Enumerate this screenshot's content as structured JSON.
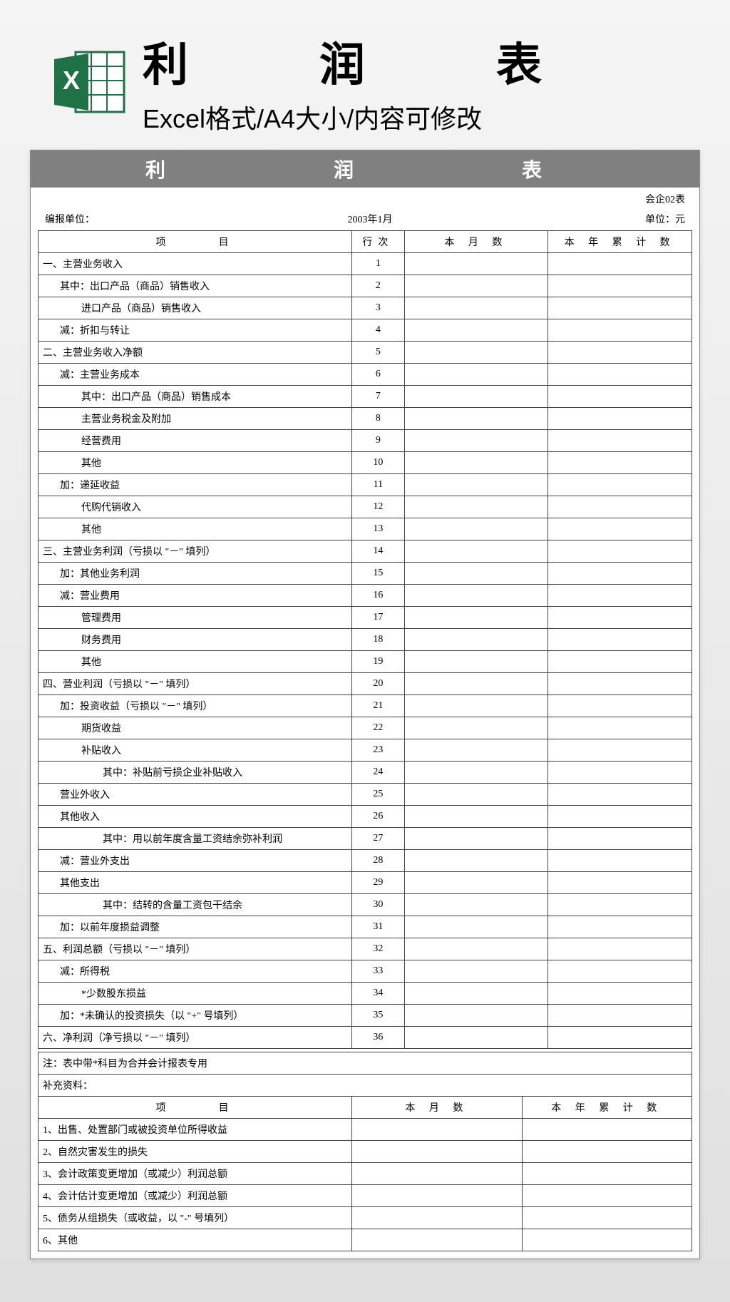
{
  "header": {
    "title": "利　润　表",
    "subtitle": "Excel格式/A4大小/内容可修改"
  },
  "doc": {
    "bar_title": "利　　润　　表",
    "form_code": "会企02表",
    "unit_label": "编报单位：",
    "period": "2003年1月",
    "currency_label": "单位：元",
    "columns": {
      "item": "项　　　目",
      "line": "行次",
      "month": "本 月 数",
      "year": "本 年 累 计 数"
    },
    "rows": [
      {
        "no": "1",
        "label": "一、主营业务收入",
        "indent": 0,
        "shaded": true
      },
      {
        "no": "2",
        "label": "其中：出口产品（商品）销售收入",
        "indent": 1
      },
      {
        "no": "3",
        "label": "进口产品（商品）销售收入",
        "indent": 2
      },
      {
        "no": "4",
        "label": "减：折扣与转让",
        "indent": 1
      },
      {
        "no": "5",
        "label": "二、主营业务收入净额",
        "indent": 0,
        "shaded": true
      },
      {
        "no": "6",
        "label": "减：主营业务成本",
        "indent": 1
      },
      {
        "no": "7",
        "label": "其中：出口产品（商品）销售成本",
        "indent": 2
      },
      {
        "no": "8",
        "label": "主营业务税金及附加",
        "indent": 2
      },
      {
        "no": "9",
        "label": "经营费用",
        "indent": 2
      },
      {
        "no": "10",
        "label": "其他",
        "indent": 2
      },
      {
        "no": "11",
        "label": "加：递延收益",
        "indent": 1
      },
      {
        "no": "12",
        "label": "代购代销收入",
        "indent": 2
      },
      {
        "no": "13",
        "label": "其他",
        "indent": 2
      },
      {
        "no": "14",
        "label": "三、主营业务利润（亏损以 \"－\" 填列）",
        "indent": 0,
        "shaded": true
      },
      {
        "no": "15",
        "label": "加：其他业务利润",
        "indent": 1
      },
      {
        "no": "16",
        "label": "减：营业费用",
        "indent": 1
      },
      {
        "no": "17",
        "label": "管理费用",
        "indent": 2
      },
      {
        "no": "18",
        "label": "财务费用",
        "indent": 2
      },
      {
        "no": "19",
        "label": "其他",
        "indent": 2
      },
      {
        "no": "20",
        "label": "四、营业利润（亏损以 \"－\" 填列）",
        "indent": 0,
        "shaded": true
      },
      {
        "no": "21",
        "label": "加：投资收益（亏损以 \"－\" 填列）",
        "indent": 1
      },
      {
        "no": "22",
        "label": "期货收益",
        "indent": 2
      },
      {
        "no": "23",
        "label": "补贴收入",
        "indent": 2
      },
      {
        "no": "24",
        "label": "其中：补贴前亏损企业补贴收入",
        "indent": 3
      },
      {
        "no": "25",
        "label": "营业外收入",
        "indent": 1
      },
      {
        "no": "26",
        "label": "其他收入",
        "indent": 1
      },
      {
        "no": "27",
        "label": "其中：用以前年度含量工资结余弥补利润",
        "indent": 3
      },
      {
        "no": "28",
        "label": "减：营业外支出",
        "indent": 1
      },
      {
        "no": "29",
        "label": "其他支出",
        "indent": 1
      },
      {
        "no": "30",
        "label": "其中：结转的含量工资包干结余",
        "indent": 3
      },
      {
        "no": "31",
        "label": "加：以前年度损益调整",
        "indent": 1
      },
      {
        "no": "32",
        "label": "五、利润总额（亏损以 \"－\" 填列）",
        "indent": 0,
        "shaded": true
      },
      {
        "no": "33",
        "label": "减：所得税",
        "indent": 1
      },
      {
        "no": "34",
        "label": "*少数股东损益",
        "indent": 2
      },
      {
        "no": "35",
        "label": "加：*未确认的投资损失（以 \"+\" 号填列）",
        "indent": 1
      },
      {
        "no": "36",
        "label": "六、净利润（净亏损以 \"－\" 填列）",
        "indent": 0,
        "shaded": true
      }
    ],
    "note1": "注：表中带*科目为合并会计报表专用",
    "note2": "补充资料：",
    "supp_columns": {
      "item": "项　　　目",
      "month": "本 月 数",
      "year": "本 年 累 计 数"
    },
    "supp_rows": [
      {
        "label": "1、出售、处置部门或被投资单位所得收益"
      },
      {
        "label": "2、自然灾害发生的损失"
      },
      {
        "label": "3、会计政策变更增加（或减少）利润总额"
      },
      {
        "label": "4、会计估计变更增加（或减少）利润总额"
      },
      {
        "label": "5、债务从组损失（或收益，以 \"-\" 号填列）"
      },
      {
        "label": "6、其他"
      }
    ]
  },
  "style": {
    "bar_bg": "#808080",
    "shaded_bg": "#e0e0e0",
    "border_color": "#444444",
    "title_fontsize": 64,
    "subtitle_fontsize": 36
  }
}
